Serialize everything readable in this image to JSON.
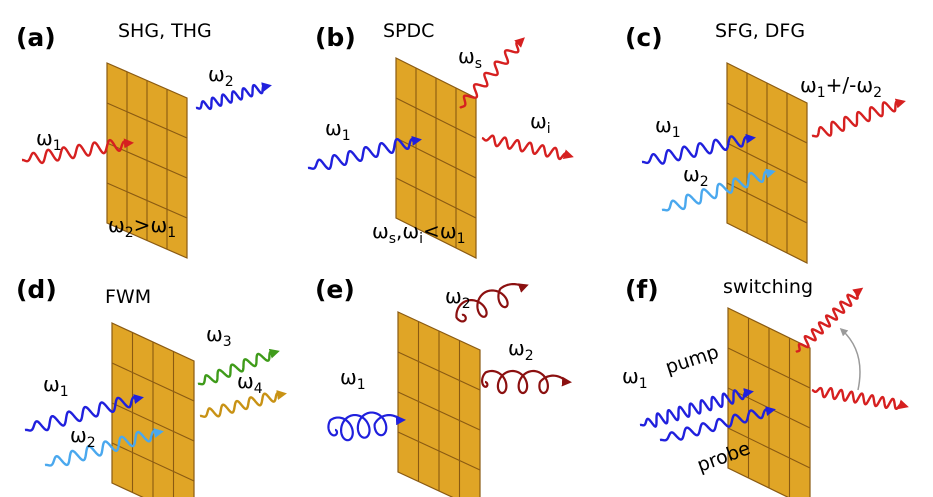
{
  "colors": {
    "plate_fill": "#e0a526",
    "plate_line": "#8a5a12",
    "red": "#d62020",
    "blue": "#2020dd",
    "light_blue": "#4aa8ee",
    "green": "#3f9b1a",
    "gold": "#c89215",
    "dark_red": "#8b1010",
    "grey_arrow": "#9a9a9a"
  },
  "panels": [
    {
      "label": "(a)",
      "title": "SHG, THG",
      "omega1": "ω",
      "omega1_sub": "1",
      "omega2": "ω",
      "omega2_sub": "2",
      "condition": {
        "a": "ω",
        "a_sub": "2",
        "rel": ">",
        "b": "ω",
        "b_sub": "1"
      }
    },
    {
      "label": "(b)",
      "title": "SPDC",
      "signal": "ω",
      "signal_sub": "s",
      "idler": "ω",
      "idler_sub": "i",
      "pump": "ω",
      "pump_sub": "1",
      "condition": {
        "a": "ω",
        "a_sub": "s",
        "sep": ",",
        "b": "ω",
        "b_sub": "i",
        "rel": "<",
        "c": "ω",
        "c_sub": "1"
      }
    },
    {
      "label": "(c)",
      "title": "SFG, DFG",
      "omega1": "ω",
      "omega1_sub": "1",
      "omega2": "ω",
      "omega2_sub": "2",
      "output": {
        "a": "ω",
        "a_sub": "1",
        "op": "+/-",
        "b": "ω",
        "b_sub": "2"
      }
    },
    {
      "label": "(d)",
      "title": "FWM",
      "omega1": "ω",
      "omega1_sub": "1",
      "omega2": "ω",
      "omega2_sub": "2",
      "omega3": "ω",
      "omega3_sub": "3",
      "omega4": "ω",
      "omega4_sub": "4"
    },
    {
      "label": "(e)",
      "title": "",
      "omega1": "ω",
      "omega1_sub": "1",
      "out_top": "ω",
      "out_top_sub": "2",
      "out_right": "ω",
      "out_right_sub": "2"
    },
    {
      "label": "(f)",
      "title": "switching",
      "omega1": "ω",
      "omega1_sub": "1",
      "pump": "pump",
      "probe": "probe"
    }
  ]
}
